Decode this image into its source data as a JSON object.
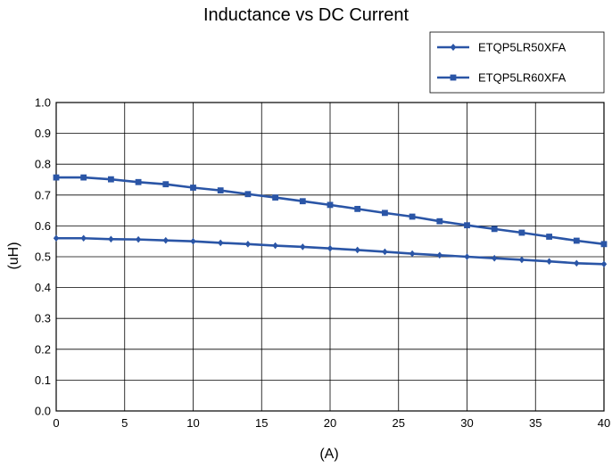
{
  "chart_data": {
    "type": "line",
    "title": "Inductance vs DC Current",
    "xlabel": "(A)",
    "ylabel": "(uH)",
    "xlim": [
      0,
      40
    ],
    "ylim": [
      0,
      1.0
    ],
    "xticks": [
      "0",
      "5",
      "10",
      "15",
      "20",
      "25",
      "30",
      "35",
      "40"
    ],
    "yticks": [
      "0.0",
      "0.1",
      "0.2",
      "0.3",
      "0.4",
      "0.5",
      "0.6",
      "0.7",
      "0.8",
      "0.9",
      "1.0"
    ],
    "grid": true,
    "legend_position": "top-right",
    "x": [
      0,
      2,
      4,
      6,
      8,
      10,
      12,
      14,
      16,
      18,
      20,
      22,
      24,
      26,
      28,
      30,
      32,
      34,
      36,
      38,
      40
    ],
    "series": [
      {
        "name": "ETQP5LR50XFA",
        "marker": "diamond",
        "color": "#2a55a6",
        "values": [
          0.56,
          0.56,
          0.557,
          0.556,
          0.553,
          0.55,
          0.545,
          0.541,
          0.536,
          0.532,
          0.527,
          0.522,
          0.516,
          0.51,
          0.505,
          0.5,
          0.495,
          0.49,
          0.485,
          0.479,
          0.476
        ]
      },
      {
        "name": "ETQP5LR60XFA",
        "marker": "square",
        "color": "#2a55a6",
        "values": [
          0.757,
          0.757,
          0.751,
          0.742,
          0.735,
          0.724,
          0.715,
          0.703,
          0.692,
          0.68,
          0.668,
          0.655,
          0.642,
          0.63,
          0.615,
          0.602,
          0.59,
          0.578,
          0.565,
          0.552,
          0.541
        ]
      }
    ]
  }
}
